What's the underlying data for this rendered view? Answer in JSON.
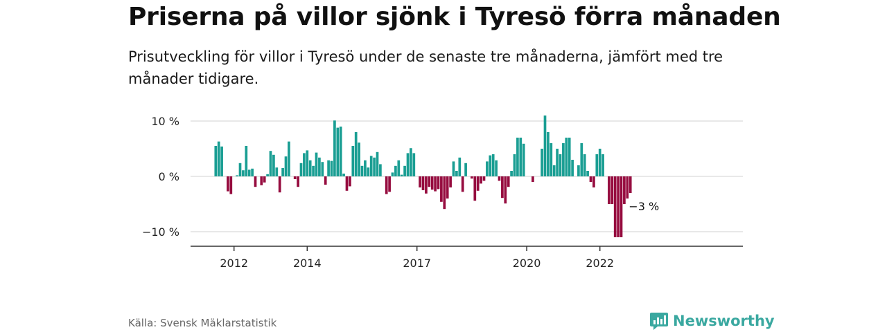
{
  "title": "Priserna på villor sjönk i Tyresö förra månaden",
  "subtitle": "Prisutveckling för villor i Tyresö under de senaste tre månaderna, jämfört med tre månader tidigare.",
  "source": "Källa: Svensk Mäklarstatistik",
  "brand": "Newsworthy",
  "colors": {
    "positive": "#1a9e93",
    "negative": "#960c3f",
    "grid": "#d9d9d9",
    "axis": "#333333",
    "brand": "#3aa8a0"
  },
  "chart_data": {
    "type": "bar",
    "title": "Priserna på villor sjönk i Tyresö förra månaden",
    "ylim": [
      -12.5,
      11.5
    ],
    "yticks": [
      10,
      0,
      -10
    ],
    "ytick_labels": [
      "10 %",
      "0 %",
      "−10 %"
    ],
    "xticks": [
      "2012",
      "2014",
      "2017",
      "2020",
      "2022"
    ],
    "grid": true,
    "legend": "none",
    "annotation": {
      "label": "−3 %",
      "month": "2023-03",
      "value": -3
    },
    "start_month": "2011-07",
    "values": [
      5.5,
      6.3,
      5.4,
      0,
      -2.7,
      -3.2,
      0,
      0.2,
      2.4,
      1.1,
      5.5,
      1.2,
      1.4,
      -1.9,
      0,
      -1.6,
      -1.1,
      0.4,
      4.6,
      3.9,
      1.6,
      -2.9,
      1.5,
      3.6,
      6.3,
      0,
      -0.5,
      -1.9,
      2.4,
      4.2,
      4.7,
      2.9,
      1.9,
      4.3,
      3.4,
      2.6,
      -1.5,
      2.9,
      2.8,
      10.1,
      8.8,
      9.0,
      0.5,
      -2.6,
      -1.8,
      5.5,
      8.0,
      6.1,
      1.9,
      2.9,
      1.6,
      3.7,
      3.4,
      4.4,
      2.2,
      0,
      -3.2,
      -2.8,
      0.7,
      1.9,
      2.9,
      0.3,
      1.9,
      4.2,
      5.1,
      4.2,
      0,
      -2.0,
      -2.5,
      -3.1,
      -1.9,
      -2.4,
      -2.7,
      -2.3,
      -4.6,
      -5.9,
      -4.0,
      -2.0,
      2.7,
      1.0,
      3.4,
      -2.8,
      2.4,
      0,
      -0.4,
      -4.4,
      -2.6,
      -1.3,
      -0.8,
      2.7,
      3.8,
      4.0,
      2.9,
      -0.8,
      -3.9,
      -4.9,
      -1.9,
      1.0,
      4.0,
      7.0,
      7.0,
      5.9,
      0,
      0,
      -1.0,
      0,
      0,
      5.0,
      11.0,
      8.0,
      6.0,
      2.0,
      5.0,
      4.0,
      6.0,
      7.0,
      7.0,
      3.0,
      0,
      2.0,
      6.0,
      4.0,
      1.0,
      -1.0,
      -2.0,
      4.0,
      5.0,
      4.0,
      0,
      -5.0,
      -5.0,
      -11.0,
      -11.0,
      -11.0,
      -5.0,
      -4.0,
      -3.0
    ]
  }
}
